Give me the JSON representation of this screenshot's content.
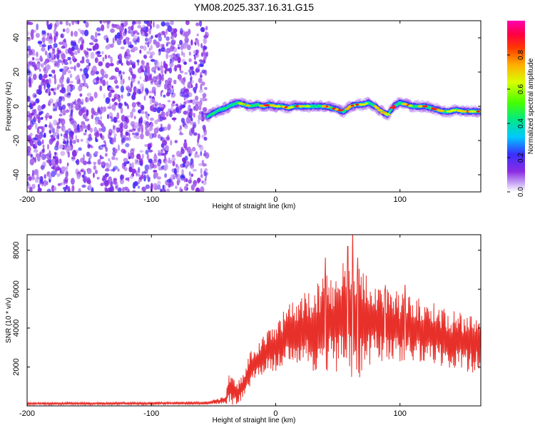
{
  "title": "YM08.2025.337.16.31.G15",
  "chart_data": [
    {
      "type": "heatmap",
      "name": "spectrogram",
      "xlabel": "Height of straight line (km)",
      "ylabel": "Frequency (Hz)",
      "xlim": [
        -200,
        165
      ],
      "ylim": [
        -50,
        50
      ],
      "xticks": [
        -200,
        -100,
        0,
        100
      ],
      "yticks": [
        -40,
        -20,
        0,
        20,
        40
      ],
      "noise_region_x": [
        -200,
        -55
      ],
      "signal_ridge": {
        "x": [
          -55,
          -50,
          -45,
          -40,
          -35,
          -30,
          -25,
          -20,
          -15,
          -10,
          -5,
          0,
          5,
          10,
          15,
          20,
          25,
          30,
          35,
          40,
          45,
          50,
          55,
          60,
          65,
          70,
          75,
          80,
          85,
          90,
          95,
          100,
          105,
          110,
          115,
          120,
          125,
          130,
          135,
          140,
          145,
          150,
          155,
          160,
          165
        ],
        "freq": [
          -6,
          -4,
          -2,
          -1,
          1,
          2,
          1,
          0,
          1,
          0,
          1,
          0,
          0,
          -1,
          0,
          0,
          0,
          0,
          0,
          0,
          -1,
          -2,
          -3,
          0,
          1,
          1,
          2,
          0,
          -3,
          -5,
          0,
          2,
          1,
          0,
          0,
          0,
          -1,
          -2,
          -3,
          -3,
          -2,
          -3,
          -3,
          -3,
          -3
        ]
      },
      "colorbar": {
        "label": "Normalized spectral amplitude",
        "range": [
          0,
          1
        ],
        "ticks": [
          "0.0",
          "0.2",
          "0.4",
          "0.6",
          "0.8"
        ]
      }
    },
    {
      "type": "line",
      "name": "snr",
      "xlabel": "Height of straight line (km)",
      "ylabel": "SNR (10 * v/v)",
      "xlim": [
        -200,
        165
      ],
      "ylim": [
        0,
        8800
      ],
      "xticks": [
        -200,
        -100,
        0,
        100
      ],
      "yticks": [
        2000,
        4000,
        6000,
        8000
      ],
      "series_color": "#e8302a",
      "envelope": {
        "x": [
          -200,
          -100,
          -55,
          -40,
          -38,
          -30,
          -25,
          -20,
          -10,
          0,
          10,
          20,
          30,
          40,
          50,
          60,
          65,
          70,
          80,
          90,
          100,
          110,
          120,
          130,
          140,
          150,
          160,
          165
        ],
        "mean": [
          120,
          130,
          150,
          300,
          900,
          700,
          1200,
          2000,
          2600,
          3000,
          3600,
          4000,
          4000,
          4200,
          4400,
          4500,
          4200,
          4300,
          4400,
          4200,
          4000,
          4000,
          3800,
          3700,
          3400,
          3300,
          3200,
          3300
        ],
        "amp": [
          60,
          70,
          80,
          200,
          900,
          600,
          700,
          900,
          1000,
          1300,
          1600,
          1800,
          2200,
          2500,
          2800,
          3200,
          3600,
          2600,
          2200,
          2100,
          1800,
          1700,
          1600,
          1600,
          1500,
          1500,
          1500,
          1400
        ]
      },
      "peaks": [
        {
          "x": 40,
          "y": 7600
        },
        {
          "x": 58,
          "y": 8200
        },
        {
          "x": 62,
          "y": 8800
        },
        {
          "x": 66,
          "y": 7600
        },
        {
          "x": 88,
          "y": 6000
        },
        {
          "x": 104,
          "y": 6200
        }
      ]
    }
  ]
}
